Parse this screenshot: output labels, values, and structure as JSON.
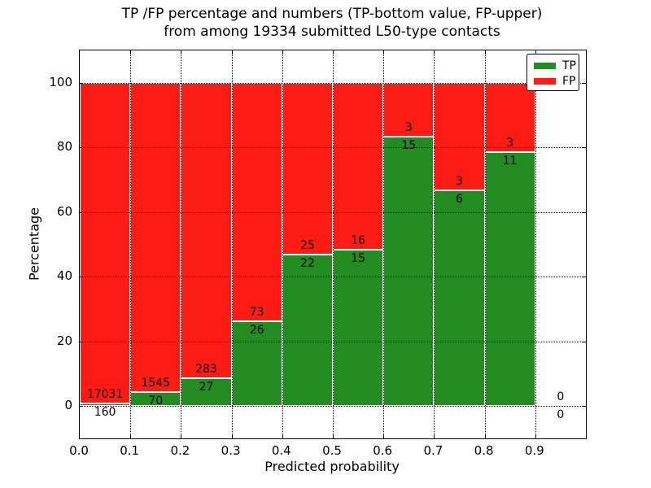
{
  "figure": {
    "title_line1": "TP /FP percentage and numbers (TP-bottom value, FP-upper)",
    "title_line2": "from among 19334 submitted L50-type contacts",
    "total_submitted": 19334
  },
  "axes": {
    "xlabel": "Predicted probability",
    "ylabel": "Percentage",
    "x_tick_labels": [
      "0.0",
      "0.1",
      "0.2",
      "0.3",
      "0.4",
      "0.5",
      "0.6",
      "0.7",
      "0.8",
      "0.9"
    ],
    "y_tick_labels": [
      "0",
      "20",
      "40",
      "60",
      "80",
      "100"
    ],
    "y_tick_values": [
      0,
      20,
      40,
      60,
      80,
      100
    ],
    "xlim": [
      0.0,
      1.0
    ],
    "ylim": [
      -10,
      110
    ],
    "grid_style": "dotted"
  },
  "legend": {
    "position": "upper-right",
    "items": [
      {
        "name": "tp",
        "label": "TP",
        "color": "#228b22"
      },
      {
        "name": "fp",
        "label": "FP",
        "color": "#fc1c13"
      }
    ]
  },
  "chart_data": {
    "type": "bar",
    "stacked": true,
    "normalized_to_percent": true,
    "bin_edges": [
      0.0,
      0.1,
      0.2,
      0.3,
      0.4,
      0.5,
      0.6,
      0.7,
      0.8,
      0.9,
      1.0
    ],
    "series": [
      {
        "name": "TP",
        "color": "#228b22",
        "counts": [
          160,
          70,
          27,
          26,
          22,
          15,
          15,
          6,
          11,
          0
        ]
      },
      {
        "name": "FP",
        "color": "#fc1c13",
        "counts": [
          17031,
          1545,
          283,
          73,
          25,
          16,
          3,
          3,
          3,
          0
        ]
      }
    ],
    "tp_percent_of_bin": [
      0.93,
      4.33,
      8.71,
      26.26,
      46.81,
      48.39,
      83.33,
      66.67,
      78.57,
      0
    ],
    "bar_total_percent": 100,
    "value_label_rule": "FP count above TP/FP boundary, TP count below boundary"
  }
}
